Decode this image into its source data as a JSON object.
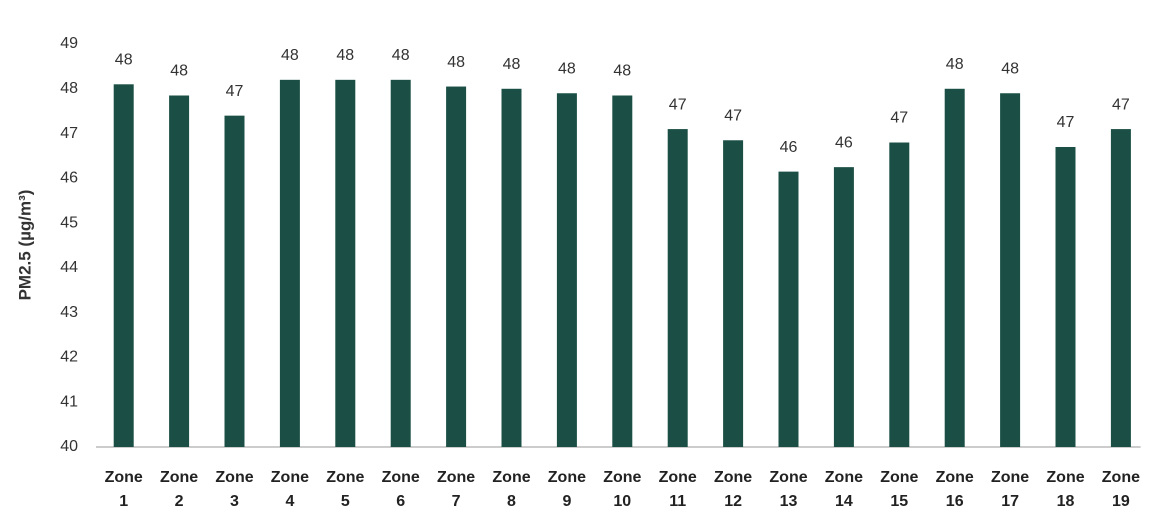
{
  "chart_data": {
    "type": "bar",
    "ylabel": "PM2.5 (µg/m³)",
    "categories": [
      "Zone 1",
      "Zone 2",
      "Zone 3",
      "Zone 4",
      "Zone 5",
      "Zone 6",
      "Zone 7",
      "Zone 8",
      "Zone 9",
      "Zone 10",
      "Zone 11",
      "Zone 12",
      "Zone 13",
      "Zone 14",
      "Zone 15",
      "Zone 16",
      "Zone 17",
      "Zone 18",
      "Zone 19"
    ],
    "values": [
      48.1,
      47.85,
      47.4,
      48.2,
      48.2,
      48.2,
      48.05,
      48.0,
      47.9,
      47.85,
      47.1,
      46.85,
      46.15,
      46.25,
      46.8,
      48.0,
      47.9,
      46.7,
      47.1
    ],
    "value_labels": [
      "48",
      "48",
      "47",
      "48",
      "48",
      "48",
      "48",
      "48",
      "48",
      "48",
      "47",
      "47",
      "46",
      "46",
      "47",
      "48",
      "48",
      "47",
      "47"
    ],
    "color": "#1b4f45",
    "ylim": [
      40,
      49
    ],
    "yticks": [
      40,
      41,
      42,
      43,
      44,
      45,
      46,
      47,
      48,
      49
    ],
    "grid": false
  }
}
